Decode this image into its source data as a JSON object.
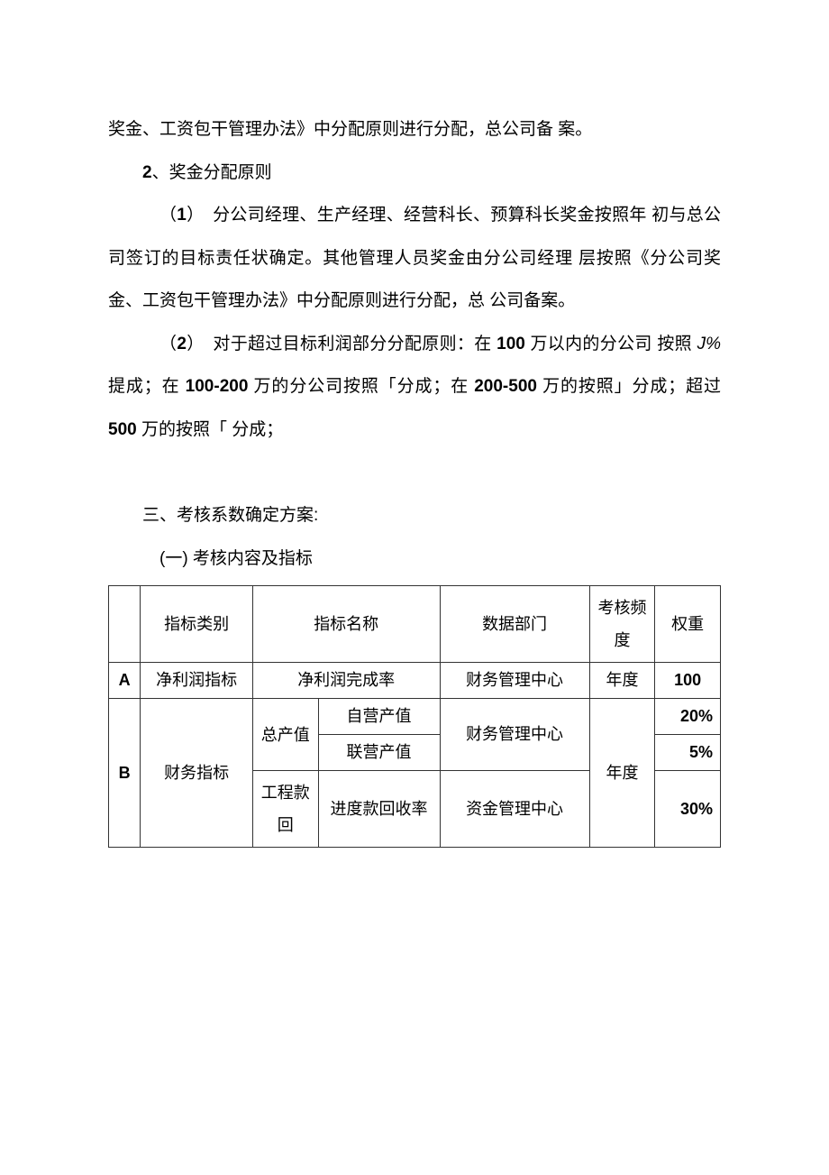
{
  "paragraphs": {
    "p1_a": "奖金、工资包干管理办法》中分配原则进行分配，总公司备 案。",
    "p2_num": "2",
    "p2_txt": "、奖金分配原则",
    "p3_lead": "（",
    "p3_num": "1",
    "p3_rest": "）　分公司经理、生产经理、经营科长、预算科长奖金按照年 初与总公司签订的目标责任状确定。其他管理人员奖金由分公司经理 层按照《分公司奖金、工资包干管理办法》中分配原则进行分配，总 公司备案。",
    "p4_lead": "（",
    "p4_num": "2",
    "p4_a": "）　对于超过目标利润部分分配原则：在 ",
    "p4_100": "100",
    "p4_b": " 万以内的分公司 按照 ",
    "p4_jp": "J%",
    "p4_c": "提成；在 ",
    "p4_100_200": "100-200",
    "p4_d": " 万的分公司按照「分成；在 ",
    "p4_200_500": "200-500",
    "p4_e": " 万的按照」分成；超过 ",
    "p4_500": "500",
    "p4_f": " 万的按照「 分成；"
  },
  "section3": {
    "title": "三、考核系数确定方案:",
    "sub1": "(一) 考核内容及指标"
  },
  "table": {
    "header": {
      "cat": "指标类别",
      "name": "指标名称",
      "dept": "数据部门",
      "freq": "考核频度",
      "weight": "权重"
    },
    "rowA": {
      "idx": "A",
      "cat": "净利润指标",
      "name": "净利润完成率",
      "dept": "财务管理中心",
      "freq": "年度",
      "weight": "100"
    },
    "rowB": {
      "idx": "B",
      "cat": "财务指标",
      "name_grp1": "总产值",
      "r1_name": "自营产值",
      "r1_weight": "20%",
      "r2_name": "联营产值",
      "r2_weight": "5%",
      "dept_fin": "财务管理中心",
      "name_grp2": "工程款回",
      "r3_name": "进度款回收率",
      "dept_fund": "资金管理中心",
      "r3_weight": "30%",
      "freq": "年度"
    }
  }
}
